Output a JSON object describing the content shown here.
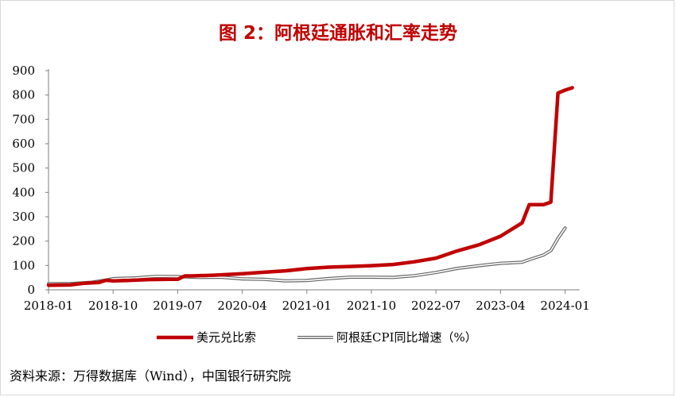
{
  "title": "图 2：阿根廷通胀和汇率走势",
  "source": "资料来源：万得数据库（Wind），中国银行研究院",
  "colors": {
    "series1": "#c00000",
    "series2": "#666666",
    "title": "#c00000"
  },
  "chart_data": {
    "type": "line",
    "title": "图 2：阿根廷通胀和汇率走势",
    "xlabel": "",
    "ylabel": "",
    "ylim": [
      0,
      900
    ],
    "yticks": [
      0,
      100,
      200,
      300,
      400,
      500,
      600,
      700,
      800,
      900
    ],
    "xlim": [
      "2018-01",
      "2024-03"
    ],
    "xticks": [
      "2018-01",
      "2018-10",
      "2019-07",
      "2020-04",
      "2021-01",
      "2021-10",
      "2022-07",
      "2023-04",
      "2024-01"
    ],
    "grid": false,
    "legend": "bottom",
    "series": [
      {
        "name": "美元兑比索",
        "style": "thick-solid",
        "points": [
          [
            "2018-01",
            19
          ],
          [
            "2018-04",
            20
          ],
          [
            "2018-06",
            27
          ],
          [
            "2018-08",
            30
          ],
          [
            "2018-09",
            39
          ],
          [
            "2018-10",
            37
          ],
          [
            "2018-12",
            38
          ],
          [
            "2019-03",
            42
          ],
          [
            "2019-06",
            43
          ],
          [
            "2019-07",
            43
          ],
          [
            "2019-08",
            57
          ],
          [
            "2019-09",
            57
          ],
          [
            "2019-12",
            60
          ],
          [
            "2020-04",
            66
          ],
          [
            "2020-07",
            72
          ],
          [
            "2020-10",
            78
          ],
          [
            "2021-01",
            87
          ],
          [
            "2021-04",
            93
          ],
          [
            "2021-07",
            96
          ],
          [
            "2021-10",
            99
          ],
          [
            "2022-01",
            104
          ],
          [
            "2022-04",
            115
          ],
          [
            "2022-07",
            130
          ],
          [
            "2022-10",
            160
          ],
          [
            "2023-01",
            185
          ],
          [
            "2023-04",
            220
          ],
          [
            "2023-07",
            275
          ],
          [
            "2023-08",
            350
          ],
          [
            "2023-10",
            350
          ],
          [
            "2023-11",
            360
          ],
          [
            "2023-12",
            808
          ],
          [
            "2024-01",
            820
          ],
          [
            "2024-02",
            830
          ]
        ]
      },
      {
        "name": "阿根廷CPI同比增速（%）",
        "style": "double-line",
        "points": [
          [
            "2018-01",
            25
          ],
          [
            "2018-04",
            25
          ],
          [
            "2018-07",
            31
          ],
          [
            "2018-09",
            40
          ],
          [
            "2018-10",
            46
          ],
          [
            "2019-01",
            49
          ],
          [
            "2019-04",
            55
          ],
          [
            "2019-07",
            54
          ],
          [
            "2019-10",
            51
          ],
          [
            "2020-01",
            52
          ],
          [
            "2020-04",
            45
          ],
          [
            "2020-07",
            43
          ],
          [
            "2020-10",
            37
          ],
          [
            "2021-01",
            38
          ],
          [
            "2021-04",
            46
          ],
          [
            "2021-07",
            52
          ],
          [
            "2021-10",
            52
          ],
          [
            "2022-01",
            51
          ],
          [
            "2022-04",
            58
          ],
          [
            "2022-07",
            71
          ],
          [
            "2022-10",
            88
          ],
          [
            "2023-01",
            99
          ],
          [
            "2023-04",
            109
          ],
          [
            "2023-07",
            113
          ],
          [
            "2023-08",
            124
          ],
          [
            "2023-10",
            143
          ],
          [
            "2023-11",
            161
          ],
          [
            "2023-12",
            211
          ],
          [
            "2024-01",
            254
          ]
        ]
      }
    ]
  }
}
